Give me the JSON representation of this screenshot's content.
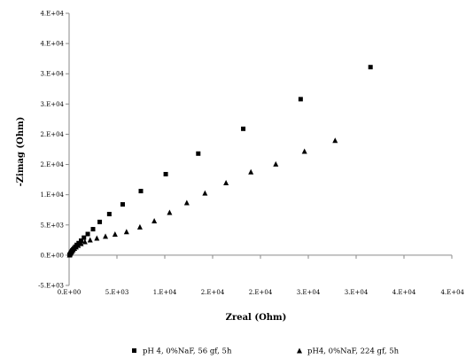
{
  "chart_data": {
    "type": "scatter",
    "xlabel": "Zreal (Ohm)",
    "ylabel": "-Zimag (Ohm)",
    "xlim": [
      0,
      40000
    ],
    "ylim": [
      -5000,
      40000
    ],
    "x_ticks": [
      0,
      5000,
      10000,
      15000,
      20000,
      25000,
      30000,
      35000,
      40000
    ],
    "x_tick_labels": [
      "0.E+00",
      "5.E+03",
      "1.E+04",
      "2.E+04",
      "2.E+04",
      "3.E+04",
      "3.E+04",
      "4.E+04",
      "4.E+04"
    ],
    "y_ticks": [
      -5000,
      0,
      5000,
      10000,
      15000,
      20000,
      25000,
      30000,
      35000,
      40000
    ],
    "y_tick_labels": [
      "-5.E+03",
      "0.E+00",
      "5.E+03",
      "1.E+04",
      "2.E+04",
      "2.E+04",
      "3.E+04",
      "3.E+04",
      "4.E+04",
      "4.E+04"
    ],
    "grid": false,
    "legend_position": "bottom",
    "series": [
      {
        "name": "pH 4, 0%NaF, 56 gf, 5h",
        "marker": "square",
        "color": "#000000",
        "points": [
          [
            50,
            50
          ],
          [
            100,
            150
          ],
          [
            150,
            300
          ],
          [
            200,
            450
          ],
          [
            260,
            600
          ],
          [
            330,
            780
          ],
          [
            420,
            950
          ],
          [
            520,
            1150
          ],
          [
            650,
            1400
          ],
          [
            800,
            1700
          ],
          [
            1000,
            2000
          ],
          [
            1250,
            2400
          ],
          [
            1550,
            2900
          ],
          [
            1950,
            3500
          ],
          [
            2500,
            4300
          ],
          [
            3200,
            5500
          ],
          [
            4200,
            6800
          ],
          [
            5600,
            8400
          ],
          [
            7500,
            10600
          ],
          [
            10100,
            13400
          ],
          [
            13500,
            16800
          ],
          [
            18200,
            20900
          ],
          [
            24200,
            25800
          ],
          [
            31500,
            31100
          ]
        ]
      },
      {
        "name": "pH4, 0%NaF, 224 gf, 5h",
        "marker": "triangle",
        "color": "#000000",
        "points": [
          [
            50,
            50
          ],
          [
            100,
            200
          ],
          [
            160,
            380
          ],
          [
            230,
            570
          ],
          [
            320,
            760
          ],
          [
            420,
            950
          ],
          [
            560,
            1150
          ],
          [
            730,
            1400
          ],
          [
            950,
            1650
          ],
          [
            1250,
            1950
          ],
          [
            1650,
            2250
          ],
          [
            2200,
            2550
          ],
          [
            2900,
            2850
          ],
          [
            3800,
            3150
          ],
          [
            4800,
            3500
          ],
          [
            6000,
            3900
          ],
          [
            7400,
            4700
          ],
          [
            8900,
            5700
          ],
          [
            10500,
            7100
          ],
          [
            12300,
            8700
          ],
          [
            14200,
            10300
          ],
          [
            16400,
            12000
          ],
          [
            19000,
            13800
          ],
          [
            21600,
            15100
          ],
          [
            24600,
            17200
          ],
          [
            27800,
            19000
          ]
        ]
      }
    ]
  }
}
